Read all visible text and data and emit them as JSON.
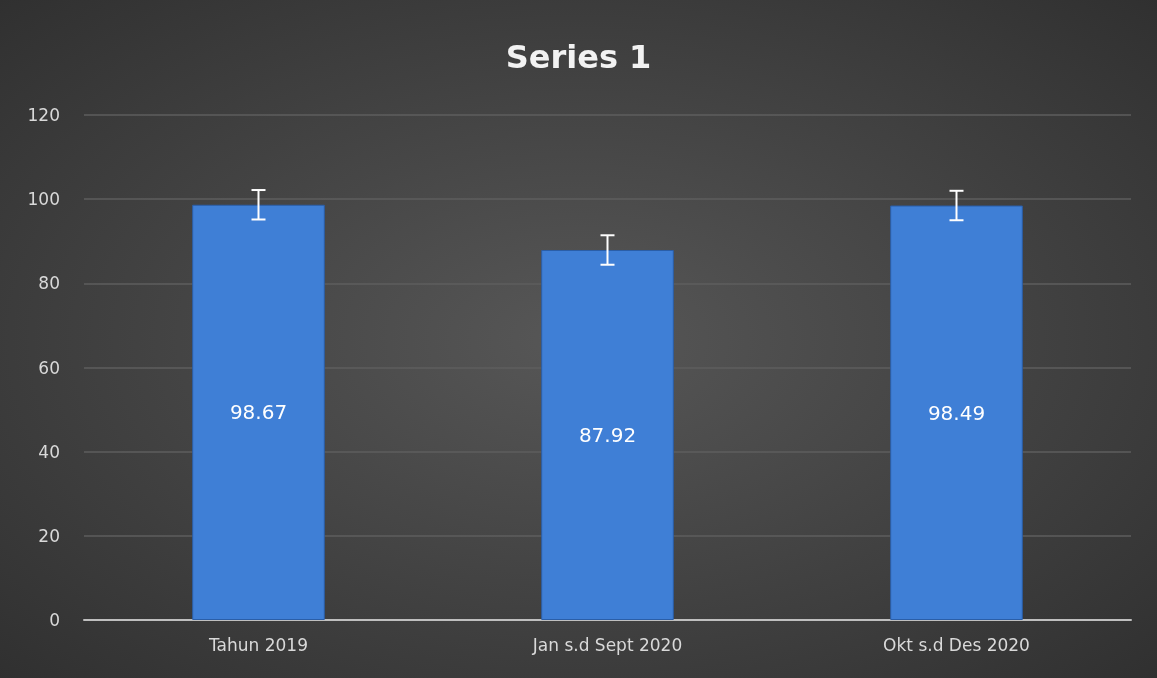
{
  "chart_data": {
    "type": "bar",
    "title": "Series 1",
    "categories": [
      "Tahun 2019",
      "Jan s.d Sept 2020",
      "Okt s.d Des 2020"
    ],
    "values": [
      98.67,
      87.92,
      98.49
    ],
    "errors": [
      3.5,
      3.5,
      3.5
    ],
    "color": "#3f7fd6",
    "ylim": [
      0,
      120
    ],
    "yticks": [
      0,
      20,
      40,
      60,
      80,
      100,
      120
    ],
    "grid": "y",
    "data_labels": true
  }
}
